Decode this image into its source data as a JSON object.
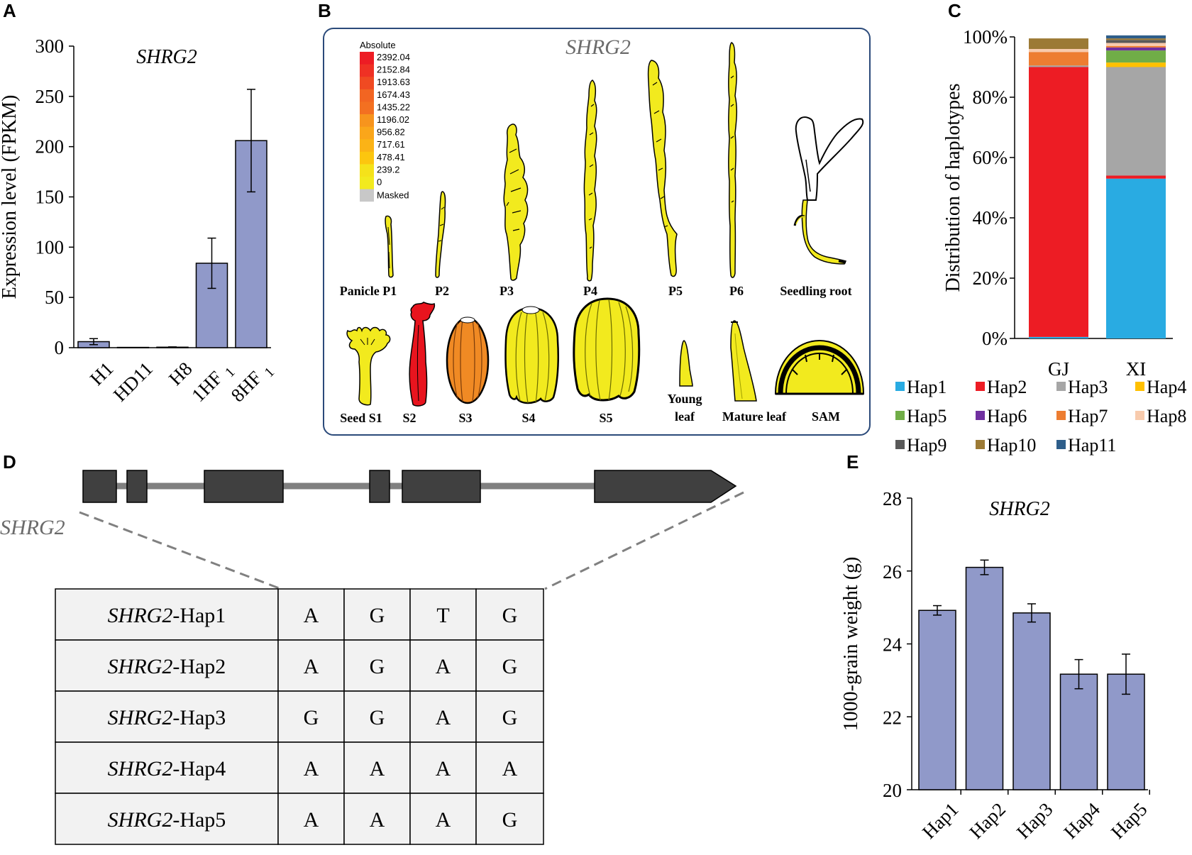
{
  "panels": {
    "a": "A",
    "b": "B",
    "c": "C",
    "d": "D",
    "e": "E"
  },
  "gene": "SHRG2",
  "chart_data": [
    {
      "id": "A",
      "type": "bar",
      "title": "SHRG2",
      "ylabel": "Expression level (FPKM)",
      "ylim": [
        0,
        300
      ],
      "yticks": [
        "0",
        "50",
        "100",
        "150",
        "200",
        "250",
        "300"
      ],
      "categories": [
        {
          "main": "H1",
          "sub": ""
        },
        {
          "main": "HD11",
          "sub": ""
        },
        {
          "main": "H8",
          "sub": ""
        },
        {
          "main": "1HF",
          "sub": "1"
        },
        {
          "main": "8HF",
          "sub": "1"
        }
      ],
      "values": [
        6,
        0.3,
        0.5,
        84,
        206
      ],
      "errors": [
        3,
        0,
        0.3,
        25,
        51
      ],
      "bar_color": "#9099c9"
    },
    {
      "id": "C",
      "type": "bar",
      "stacked": true,
      "ylabel": "Distribution of haplotypes",
      "ylim": [
        0,
        100
      ],
      "yticks": [
        "0%",
        "20%",
        "40%",
        "60%",
        "80%",
        "100%"
      ],
      "categories": [
        "GJ",
        "XI"
      ],
      "series": [
        {
          "name": "Hap1",
          "color": "#29abe2",
          "values": [
            0.5,
            53
          ]
        },
        {
          "name": "Hap2",
          "color": "#ed1c24",
          "values": [
            89.5,
            1
          ]
        },
        {
          "name": "Hap3",
          "color": "#a6a6a6",
          "values": [
            0.5,
            36
          ]
        },
        {
          "name": "Hap4",
          "color": "#ffc000",
          "values": [
            0,
            1.5
          ]
        },
        {
          "name": "Hap5",
          "color": "#70ad47",
          "values": [
            0,
            4
          ]
        },
        {
          "name": "Hap6",
          "color": "#7030a0",
          "values": [
            0,
            1
          ]
        },
        {
          "name": "Hap7",
          "color": "#ed7d31",
          "values": [
            4.5,
            0.5
          ]
        },
        {
          "name": "Hap8",
          "color": "#f8cbad",
          "values": [
            1,
            1
          ]
        },
        {
          "name": "Hap9",
          "color": "#595959",
          "values": [
            0,
            1
          ]
        },
        {
          "name": "Hap10",
          "color": "#9c7a35",
          "values": [
            3.5,
            0.5
          ]
        },
        {
          "name": "Hap11",
          "color": "#2e5e8a",
          "values": [
            0,
            1
          ]
        }
      ]
    },
    {
      "id": "E",
      "type": "bar",
      "title": "SHRG2",
      "ylabel": "1000-grain weight (g)",
      "ylim": [
        20,
        28
      ],
      "yticks": [
        "20",
        "22",
        "24",
        "26",
        "28"
      ],
      "categories": [
        "Hap1",
        "Hap2",
        "Hap3",
        "Hap4",
        "Hap5"
      ],
      "values": [
        24.92,
        26.1,
        24.85,
        23.17,
        23.17
      ],
      "errors": [
        0.13,
        0.2,
        0.25,
        0.4,
        0.55
      ],
      "bar_color": "#9099c9"
    }
  ],
  "heatmap_panel": {
    "title": "SHRG2",
    "scale_title": "Absolute",
    "scale_values": [
      "2392.04",
      "2152.84",
      "1913.63",
      "1674.43",
      "1435.22",
      "1196.02",
      "956.82",
      "717.61",
      "478.41",
      "239.2",
      "0"
    ],
    "scale_masked": "Masked",
    "scale_colors": [
      "#ed1c24",
      "#ef3124",
      "#f04a22",
      "#f26522",
      "#f37021",
      "#f7941d",
      "#faa61a",
      "#fbb316",
      "#fcc60f",
      "#f5e21a",
      "#f2ea1e"
    ],
    "masked_color": "#c8c8c8",
    "organs_row1": [
      "Panicle P1",
      "P2",
      "P3",
      "P4",
      "P5",
      "P6",
      "Seedling root"
    ],
    "organs_row2": [
      "Seed S1",
      "S2",
      "S3",
      "S4",
      "S5"
    ],
    "young_leaf": [
      "Young",
      "leaf"
    ],
    "mature_leaf": "Mature leaf",
    "sam": "SAM",
    "yellow": "#f2ea1e",
    "outline": "#000000",
    "s2_color": "#e8141e",
    "s3_color": "#f08a24"
  },
  "table": {
    "suffix": "-Hap",
    "rows": [
      {
        "label_num": "1",
        "cells": [
          "A",
          "G",
          "T",
          "G"
        ]
      },
      {
        "label_num": "2",
        "cells": [
          "A",
          "G",
          "A",
          "G"
        ]
      },
      {
        "label_num": "3",
        "cells": [
          "G",
          "G",
          "A",
          "G"
        ]
      },
      {
        "label_num": "4",
        "cells": [
          "A",
          "A",
          "A",
          "A"
        ]
      },
      {
        "label_num": "5",
        "cells": [
          "A",
          "A",
          "A",
          "G"
        ]
      }
    ]
  }
}
